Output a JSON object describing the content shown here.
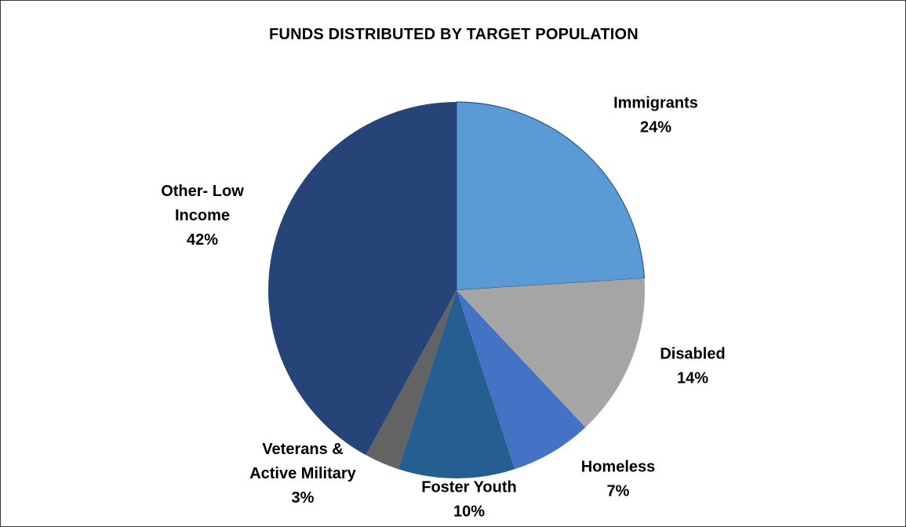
{
  "chart_data": {
    "type": "pie",
    "title": "FUNDS DISTRIBUTED BY TARGET POPULATION",
    "slices": [
      {
        "label": "Immigrants",
        "value": 24,
        "percent_label": "24%",
        "color": "#5b9bd5"
      },
      {
        "label": "Disabled",
        "value": 14,
        "percent_label": "14%",
        "color": "#a5a5a5"
      },
      {
        "label": "Homeless",
        "value": 7,
        "percent_label": "7%",
        "color": "#4472c4"
      },
      {
        "label": "Foster Youth",
        "value": 10,
        "percent_label": "10%",
        "color": "#255e91"
      },
      {
        "label": "Veterans & Active Military",
        "value": 3,
        "percent_label": "3%",
        "color": "#636363"
      },
      {
        "label": "Other- Low Income",
        "value": 42,
        "percent_label": "42%",
        "color": "#264478"
      }
    ],
    "start_angle_deg": 0,
    "direction": "clockwise",
    "legend": "none"
  }
}
